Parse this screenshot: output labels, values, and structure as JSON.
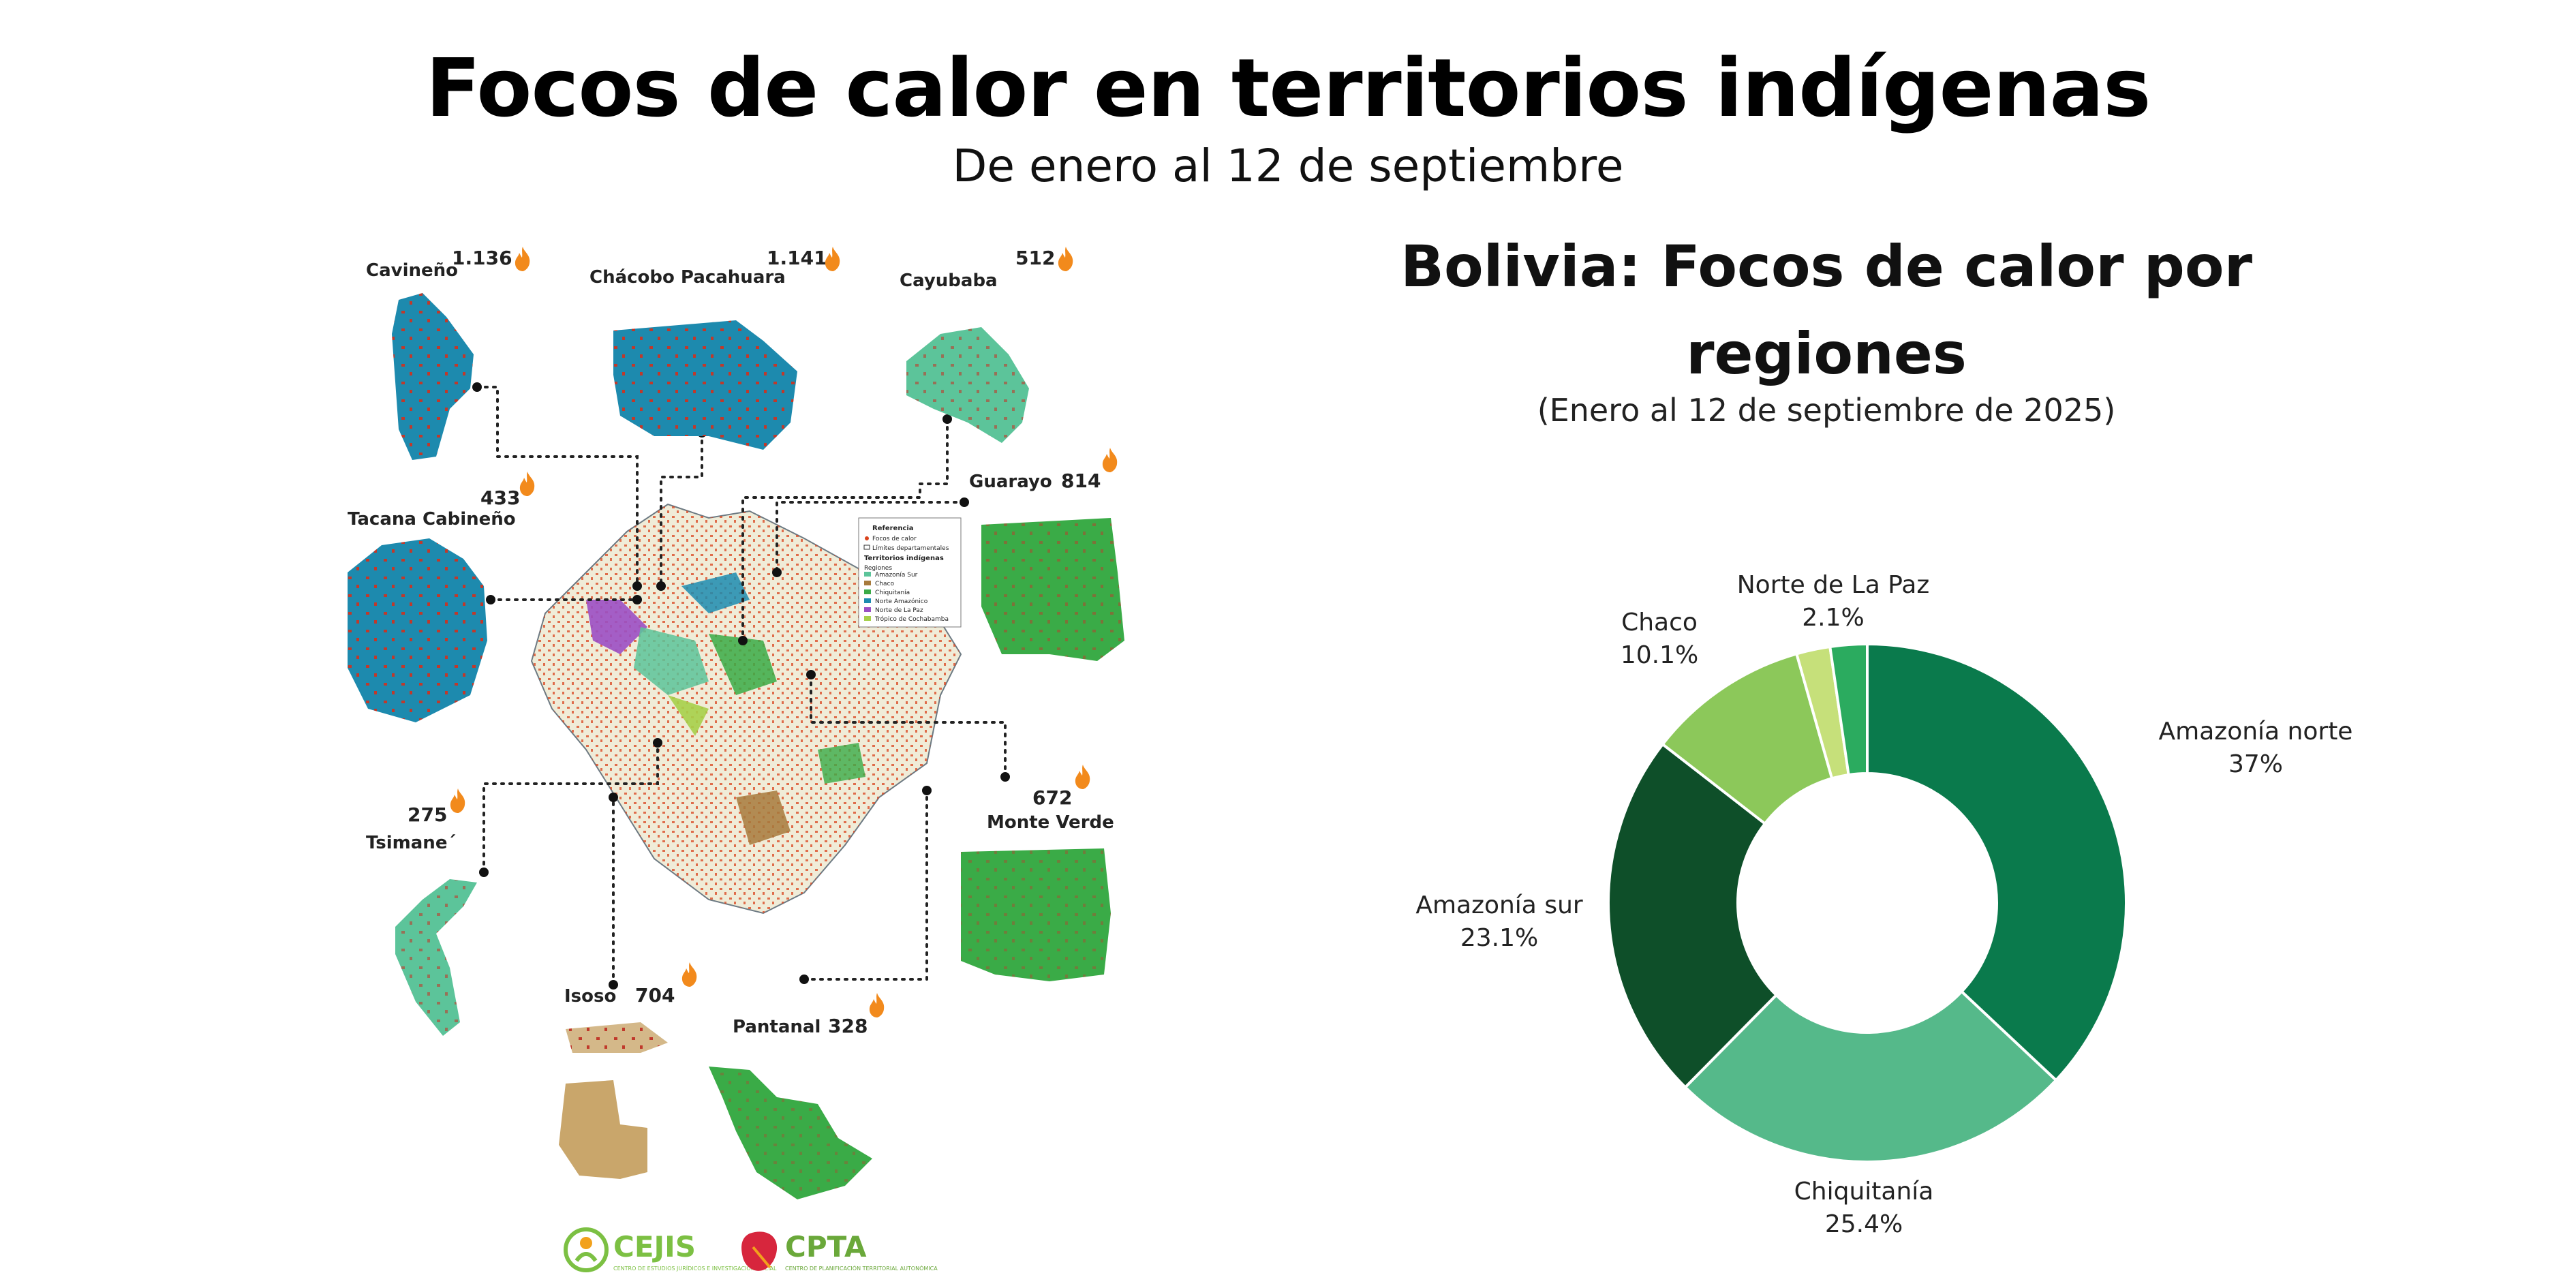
{
  "header": {
    "title": "Focos de calor en territorios indígenas",
    "subtitle": "De enero al 12 de septiembre"
  },
  "map": {
    "territories": [
      {
        "name": "Cavineño",
        "count": "1.136"
      },
      {
        "name": "Chácobo Pacahuara",
        "count": "1.141"
      },
      {
        "name": "Cayubaba",
        "count": "512"
      },
      {
        "name": "Guarayo",
        "count": "814"
      },
      {
        "name": "Tacana Cabineño",
        "count": "433"
      },
      {
        "name": "Monte Verde",
        "count": "672"
      },
      {
        "name": "Tsimane´",
        "count": "275"
      },
      {
        "name": "Isoso",
        "count": "704"
      },
      {
        "name": "Pantanal",
        "count": "328"
      }
    ],
    "legend": {
      "title": "Referencia",
      "items": [
        "Focos de calor",
        "Límites departamentales"
      ],
      "section": "Territorios indígenas",
      "regions_label": "Regiones",
      "regions": [
        "Amazonía Sur",
        "Chaco",
        "Chiquitanía",
        "Norte Amazónico",
        "Norte de La Paz",
        "Trópico de Cochabamba"
      ],
      "region_colors": [
        "#5cc49a",
        "#a77a3c",
        "#3aab47",
        "#1c8cb0",
        "#9b4fc4",
        "#a6d04a"
      ]
    },
    "logos": [
      {
        "name": "CEJIS",
        "tagline": "CENTRO DE ESTUDIOS JURÍDICOS E INVESTIGACIÓN SOCIAL",
        "color": "#7cc043"
      },
      {
        "name": "CPTA",
        "tagline": "CENTRO DE PLANIFICACIÓN TERRITORIAL AUTONÓMICA",
        "color": "#6aa83a"
      }
    ],
    "colors": {
      "hotspot": "#d9421c",
      "country_fill": "#f0ecd8",
      "territory_blue": "#1d8aae",
      "territory_teal": "#5cc49a",
      "territory_green": "#3aab47",
      "territory_tan": "#c9a66b"
    }
  },
  "chart_data": {
    "type": "pie",
    "style": "donut",
    "title": "Bolivia: Focos de calor por regiones",
    "subtitle": "(Enero al 12 de septiembre de 2025)",
    "categories": [
      "Amazonía norte",
      "Chiquitanía",
      "Amazonía sur",
      "Chaco",
      "Norte de La Paz",
      "Trópico de Cochabamba"
    ],
    "labels": [
      "37%",
      "25.4%",
      "23.1%",
      "10.1%",
      "2.1%",
      ""
    ],
    "values": [
      37,
      25.4,
      23.1,
      10.1,
      2.1,
      2.3
    ],
    "colors": [
      "#0a7a4c",
      "#55b98a",
      "#0e4f29",
      "#8cc85a",
      "#c6e07a",
      "#2bab5f"
    ]
  }
}
